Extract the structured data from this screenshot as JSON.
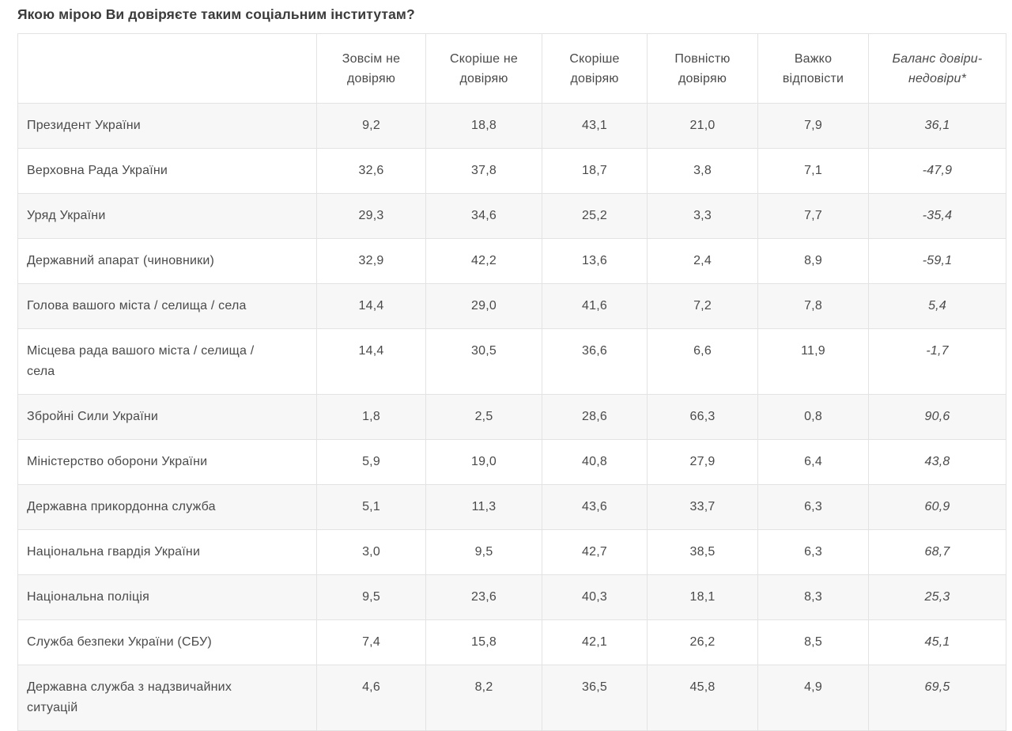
{
  "title": "Якою мірою Ви довіряєте таким соціальним інститутам?",
  "columns": {
    "c1": "Зовсім не довіряю",
    "c2": "Скоріше не довіряю",
    "c3": "Скоріше довіряю",
    "c4": "Повністю довіряю",
    "c5": "Важко відповісти",
    "c6": "Баланс довіри-недовіри*"
  },
  "rows": [
    {
      "label": "Президент України",
      "v1": "9,2",
      "v2": "18,8",
      "v3": "43,1",
      "v4": "21,0",
      "v5": "7,9",
      "balance": "36,1"
    },
    {
      "label": "Верховна Рада України",
      "v1": "32,6",
      "v2": "37,8",
      "v3": "18,7",
      "v4": "3,8",
      "v5": "7,1",
      "balance": "-47,9"
    },
    {
      "label": "Уряд України",
      "v1": "29,3",
      "v2": "34,6",
      "v3": "25,2",
      "v4": "3,3",
      "v5": "7,7",
      "balance": "-35,4"
    },
    {
      "label": "Державний апарат (чиновники)",
      "v1": "32,9",
      "v2": "42,2",
      "v3": "13,6",
      "v4": "2,4",
      "v5": "8,9",
      "balance": "-59,1"
    },
    {
      "label": "Голова вашого міста / селища / села",
      "v1": "14,4",
      "v2": "29,0",
      "v3": "41,6",
      "v4": "7,2",
      "v5": "7,8",
      "balance": "5,4"
    },
    {
      "label": "Місцева рада вашого міста / селища / села",
      "v1": "14,4",
      "v2": "30,5",
      "v3": "36,6",
      "v4": "6,6",
      "v5": "11,9",
      "balance": "-1,7"
    },
    {
      "label": "Збройні Сили України",
      "v1": "1,8",
      "v2": "2,5",
      "v3": "28,6",
      "v4": "66,3",
      "v5": "0,8",
      "balance": "90,6"
    },
    {
      "label": "Міністерство оборони України",
      "v1": "5,9",
      "v2": "19,0",
      "v3": "40,8",
      "v4": "27,9",
      "v5": "6,4",
      "balance": "43,8"
    },
    {
      "label": "Державна прикордонна служба",
      "v1": "5,1",
      "v2": "11,3",
      "v3": "43,6",
      "v4": "33,7",
      "v5": "6,3",
      "balance": "60,9"
    },
    {
      "label": "Національна гвардія України",
      "v1": "3,0",
      "v2": "9,5",
      "v3": "42,7",
      "v4": "38,5",
      "v5": "6,3",
      "balance": "68,7"
    },
    {
      "label": "Національна поліція",
      "v1": "9,5",
      "v2": "23,6",
      "v3": "40,3",
      "v4": "18,1",
      "v5": "8,3",
      "balance": "25,3"
    },
    {
      "label": "Служба безпеки України (СБУ)",
      "v1": "7,4",
      "v2": "15,8",
      "v3": "42,1",
      "v4": "26,2",
      "v5": "8,5",
      "balance": "45,1"
    },
    {
      "label": "Державна служба з надзвичайних ситуацій",
      "v1": "4,6",
      "v2": "8,2",
      "v3": "36,5",
      "v4": "45,8",
      "v5": "4,9",
      "balance": "69,5"
    }
  ],
  "colors": {
    "text": "#4a4a4a",
    "title_text": "#3b3b3b",
    "border": "#e3e3e3",
    "zebra_row": "#f7f7f8",
    "background": "#ffffff"
  },
  "chart_data": {
    "type": "table",
    "title": "Якою мірою Ви довіряєте таким соціальним інститутам?",
    "columns": [
      "Зовсім не довіряю",
      "Скоріше не довіряю",
      "Скоріше довіряю",
      "Повністю довіряю",
      "Важко відповісти",
      "Баланс довіри-недовіри*"
    ],
    "rows": [
      {
        "label": "Президент України",
        "values": [
          9.2,
          18.8,
          43.1,
          21.0,
          7.9
        ],
        "balance": 36.1
      },
      {
        "label": "Верховна Рада України",
        "values": [
          32.6,
          37.8,
          18.7,
          3.8,
          7.1
        ],
        "balance": -47.9
      },
      {
        "label": "Уряд України",
        "values": [
          29.3,
          34.6,
          25.2,
          3.3,
          7.7
        ],
        "balance": -35.4
      },
      {
        "label": "Державний апарат (чиновники)",
        "values": [
          32.9,
          42.2,
          13.6,
          2.4,
          8.9
        ],
        "balance": -59.1
      },
      {
        "label": "Голова вашого міста / селища / села",
        "values": [
          14.4,
          29.0,
          41.6,
          7.2,
          7.8
        ],
        "balance": 5.4
      },
      {
        "label": "Місцева рада вашого міста / селища / села",
        "values": [
          14.4,
          30.5,
          36.6,
          6.6,
          11.9
        ],
        "balance": -1.7
      },
      {
        "label": "Збройні Сили України",
        "values": [
          1.8,
          2.5,
          28.6,
          66.3,
          0.8
        ],
        "balance": 90.6
      },
      {
        "label": "Міністерство оборони України",
        "values": [
          5.9,
          19.0,
          40.8,
          27.9,
          6.4
        ],
        "balance": 43.8
      },
      {
        "label": "Державна прикордонна служба",
        "values": [
          5.1,
          11.3,
          43.6,
          33.7,
          6.3
        ],
        "balance": 60.9
      },
      {
        "label": "Національна гвардія України",
        "values": [
          3.0,
          9.5,
          42.7,
          38.5,
          6.3
        ],
        "balance": 68.7
      },
      {
        "label": "Національна поліція",
        "values": [
          9.5,
          23.6,
          40.3,
          18.1,
          8.3
        ],
        "balance": 25.3
      },
      {
        "label": "Служба безпеки України (СБУ)",
        "values": [
          7.4,
          15.8,
          42.1,
          26.2,
          8.5
        ],
        "balance": 45.1
      },
      {
        "label": "Державна служба з надзвичайних ситуацій",
        "values": [
          4.6,
          8.2,
          36.5,
          45.8,
          4.9
        ],
        "balance": 69.5
      }
    ]
  }
}
